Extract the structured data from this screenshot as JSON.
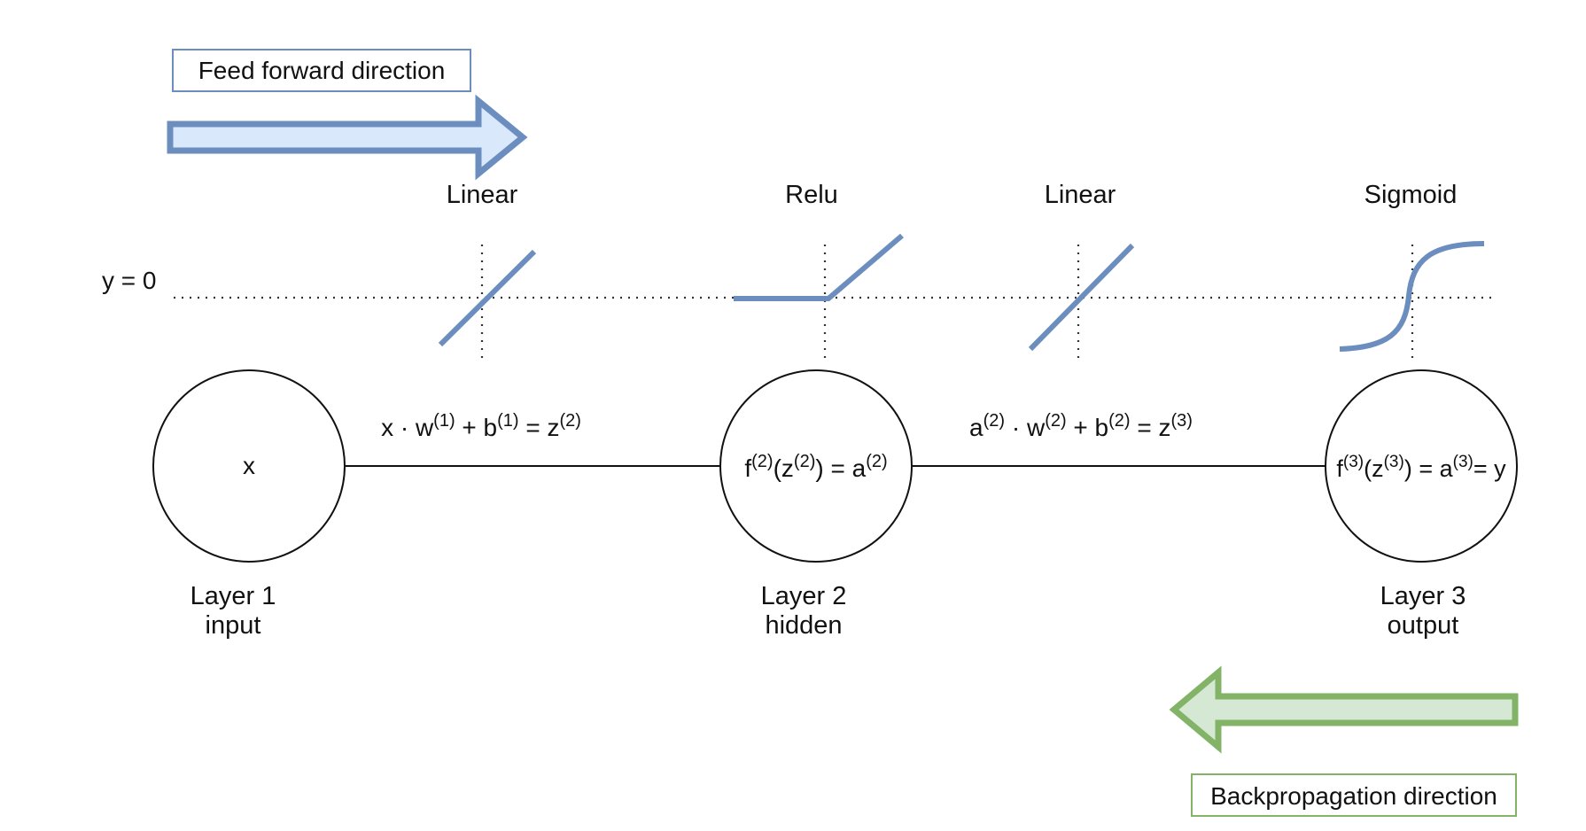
{
  "directions": {
    "forward_label": "Feed forward direction",
    "backward_label": "Backpropagation direction",
    "forward_color": "#6c8ebf",
    "forward_fill": "#dae8fc",
    "backward_color": "#82b366",
    "backward_fill": "#d5e8d4"
  },
  "baseline_label": "y = 0",
  "activations": [
    {
      "label": "Linear",
      "kind": "linear"
    },
    {
      "label": "Relu",
      "kind": "relu"
    },
    {
      "label": "Linear",
      "kind": "linear"
    },
    {
      "label": "Sigmoid",
      "kind": "sigmoid"
    }
  ],
  "curve_color": "#6c8ebf",
  "nodes": [
    {
      "content": "x",
      "name": "Layer 1",
      "role": "input"
    },
    {
      "name": "Layer 2",
      "role": "hidden"
    },
    {
      "name": "Layer 3",
      "role": "output"
    }
  ],
  "equations": {
    "edge1": {
      "t1": "x · w",
      "s1": "(1)",
      "t2": " + b",
      "s2": "(1)",
      "t3": " = z",
      "s3": "(2)"
    },
    "edge2": {
      "t1": "a",
      "s1": "(2)",
      "t2": " · w",
      "s2": "(2)",
      "t3": " + b",
      "s3": "(2)",
      "t4": " = z",
      "s4": "(3)"
    },
    "node2": {
      "t1": "f",
      "s1": "(2)",
      "t2": "(z",
      "s2": "(2)",
      "t3": ") = a",
      "s3": "(2)"
    },
    "node3": {
      "t1": "f",
      "s1": "(3)",
      "t2": "(z",
      "s2": "(3)",
      "t3": ") = a",
      "s3": "(3)",
      "t4": "= y"
    }
  }
}
